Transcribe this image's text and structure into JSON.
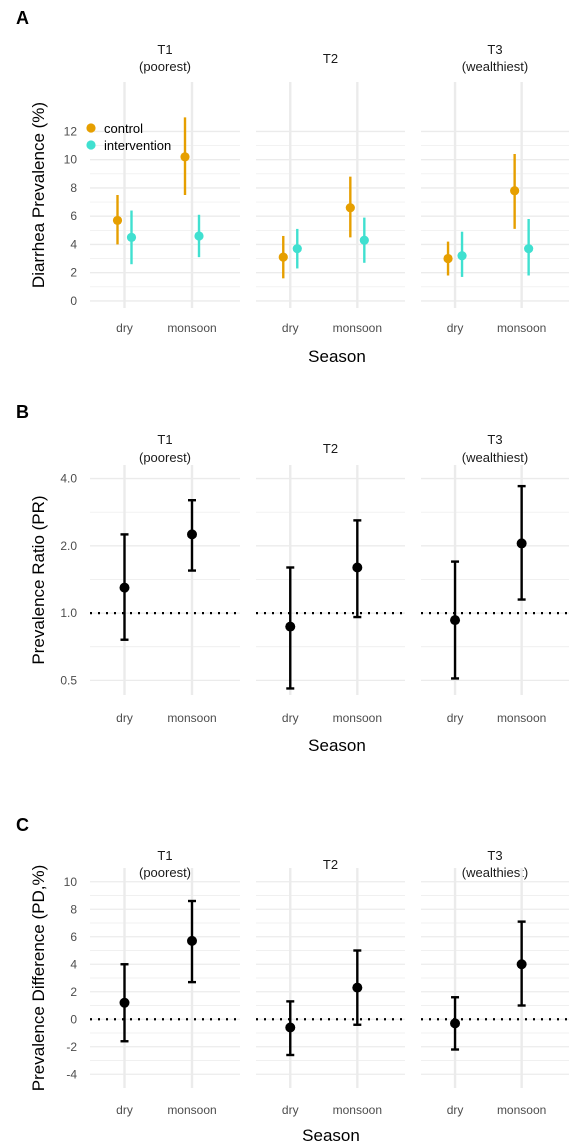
{
  "x_categories": [
    "dry",
    "monsoon"
  ],
  "facets": [
    {
      "title_line1": "T1",
      "title_line2": "(poorest)"
    },
    {
      "title_line1": "T2",
      "title_line2": ""
    },
    {
      "title_line1": "T3",
      "title_line2": "(wealthiest)"
    }
  ],
  "colors": {
    "control": "#E69F00",
    "intervention": "#40E0D0",
    "estimate": "#000000",
    "grid": "#ebebeb"
  },
  "chart_data": [
    {
      "panel_label": "A",
      "type": "scatter",
      "subtype": "point-range",
      "xlabel": "Season",
      "ylabel": "Diarrhea Prevalence (%)",
      "ylim": [
        -0.5,
        15.5
      ],
      "y_scale": "linear",
      "y_ticks": [
        0,
        2,
        4,
        6,
        8,
        10,
        12
      ],
      "y_tick_labels": [
        "0",
        "2",
        "4",
        "6",
        "8",
        "10",
        "12"
      ],
      "legend": {
        "position": "top-left",
        "entries": [
          "control",
          "intervention"
        ]
      },
      "series": [
        {
          "name": "control",
          "points": [
            {
              "facet": "T1",
              "x": "dry",
              "y": 5.7,
              "lo": 4.0,
              "hi": 7.5
            },
            {
              "facet": "T1",
              "x": "monsoon",
              "y": 10.2,
              "lo": 7.5,
              "hi": 13.0
            },
            {
              "facet": "T2",
              "x": "dry",
              "y": 3.1,
              "lo": 1.6,
              "hi": 4.6
            },
            {
              "facet": "T2",
              "x": "monsoon",
              "y": 6.6,
              "lo": 4.5,
              "hi": 8.8
            },
            {
              "facet": "T3",
              "x": "dry",
              "y": 3.0,
              "lo": 1.8,
              "hi": 4.2
            },
            {
              "facet": "T3",
              "x": "monsoon",
              "y": 7.8,
              "lo": 5.1,
              "hi": 10.4
            }
          ]
        },
        {
          "name": "intervention",
          "points": [
            {
              "facet": "T1",
              "x": "dry",
              "y": 4.5,
              "lo": 2.6,
              "hi": 6.4
            },
            {
              "facet": "T1",
              "x": "monsoon",
              "y": 4.6,
              "lo": 3.1,
              "hi": 6.1
            },
            {
              "facet": "T2",
              "x": "dry",
              "y": 3.7,
              "lo": 2.3,
              "hi": 5.1
            },
            {
              "facet": "T2",
              "x": "monsoon",
              "y": 4.3,
              "lo": 2.7,
              "hi": 5.9
            },
            {
              "facet": "T3",
              "x": "dry",
              "y": 3.2,
              "lo": 1.7,
              "hi": 4.9
            },
            {
              "facet": "T3",
              "x": "monsoon",
              "y": 3.7,
              "lo": 1.8,
              "hi": 5.8
            }
          ]
        }
      ]
    },
    {
      "panel_label": "B",
      "type": "scatter",
      "subtype": "point-errorbar",
      "xlabel": "Season",
      "ylabel": "Prevalence Ratio (PR)",
      "y_scale": "log",
      "ylim": [
        0.43,
        4.6
      ],
      "y_ticks": [
        0.5,
        1.0,
        2.0,
        4.0
      ],
      "y_tick_labels": [
        "0.5",
        "1.0",
        "2.0",
        "4.0"
      ],
      "reference_line": 1.0,
      "series": [
        {
          "points": [
            {
              "facet": "T1",
              "x": "dry",
              "y": 1.3,
              "lo": 0.76,
              "hi": 2.25
            },
            {
              "facet": "T1",
              "x": "monsoon",
              "y": 2.25,
              "lo": 1.55,
              "hi": 3.2
            },
            {
              "facet": "T2",
              "x": "dry",
              "y": 0.87,
              "lo": 0.46,
              "hi": 1.6
            },
            {
              "facet": "T2",
              "x": "monsoon",
              "y": 1.6,
              "lo": 0.96,
              "hi": 2.6
            },
            {
              "facet": "T3",
              "x": "dry",
              "y": 0.93,
              "lo": 0.51,
              "hi": 1.7
            },
            {
              "facet": "T3",
              "x": "monsoon",
              "y": 2.05,
              "lo": 1.15,
              "hi": 3.7
            }
          ]
        }
      ]
    },
    {
      "panel_label": "C",
      "type": "scatter",
      "subtype": "point-errorbar",
      "xlabel": "Season",
      "ylabel": "Prevalence Difference (PD,%)",
      "y_scale": "linear",
      "ylim": [
        -5,
        11
      ],
      "y_ticks": [
        -4,
        -2,
        0,
        2,
        4,
        6,
        8,
        10
      ],
      "y_tick_labels": [
        "-4",
        "-2",
        "0",
        "2",
        "4",
        "6",
        "8",
        "10"
      ],
      "reference_line": 0,
      "series": [
        {
          "points": [
            {
              "facet": "T1",
              "x": "dry",
              "y": 1.2,
              "lo": -1.6,
              "hi": 4.0
            },
            {
              "facet": "T1",
              "x": "monsoon",
              "y": 5.7,
              "lo": 2.7,
              "hi": 8.6
            },
            {
              "facet": "T2",
              "x": "dry",
              "y": -0.6,
              "lo": -2.6,
              "hi": 1.3
            },
            {
              "facet": "T2",
              "x": "monsoon",
              "y": 2.3,
              "lo": -0.4,
              "hi": 5.0
            },
            {
              "facet": "T3",
              "x": "dry",
              "y": -0.3,
              "lo": -2.2,
              "hi": 1.6
            },
            {
              "facet": "T3",
              "x": "monsoon",
              "y": 4.0,
              "lo": 1.0,
              "hi": 7.1
            }
          ]
        }
      ]
    }
  ]
}
